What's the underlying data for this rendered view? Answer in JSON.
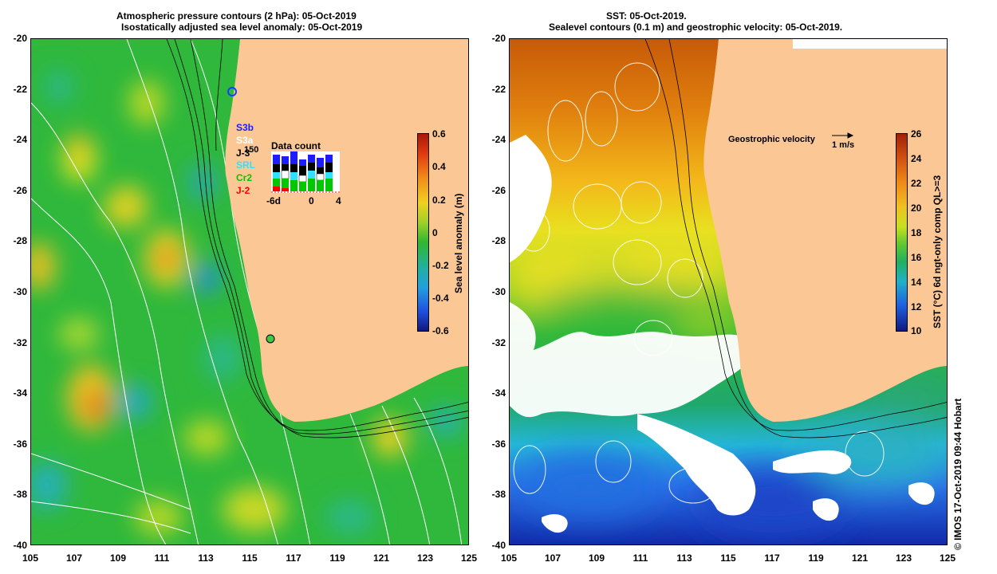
{
  "left_panel": {
    "title_line1": "Atmospheric pressure contours (2 hPa): 05-Oct-2019",
    "title_line2": "Isostatically adjusted sea level anomaly: 05-Oct-2019",
    "satellites": [
      {
        "label": "S3b",
        "color": "#1c1cff"
      },
      {
        "label": "S3a",
        "color": "#ffffff"
      },
      {
        "label": "J-3",
        "color": "#000000"
      },
      {
        "label": "SRL",
        "color": "#30e0ff"
      },
      {
        "label": "Cr2",
        "color": "#00c800"
      },
      {
        "label": "J-2",
        "color": "#ff0000"
      }
    ],
    "data_count": {
      "title": "Data count",
      "max_label": "150",
      "axis_labels": [
        "-6d",
        "0",
        "4"
      ]
    },
    "colorbar": {
      "label": "Sea level anomaly (m)",
      "ticks": [
        "0.6",
        "0.4",
        "0.2",
        "0",
        "-0.2",
        "-0.4",
        "-0.6"
      ]
    }
  },
  "right_panel": {
    "title_line1": "SST: 05-Oct-2019.",
    "title_line2": "Sealevel contours (0.1 m) and geostrophic velocity: 05-Oct-2019.",
    "velocity_legend": {
      "label": "Geostrophic velocity",
      "scale": "1 m/s"
    },
    "colorbar": {
      "label": "SST (°C) 6d ngt-only comp QL>=3",
      "ticks": [
        "26",
        "24",
        "22",
        "20",
        "18",
        "16",
        "14",
        "12",
        "10"
      ]
    }
  },
  "axes": {
    "y_ticks": [
      "-20",
      "-22",
      "-24",
      "-26",
      "-28",
      "-30",
      "-32",
      "-34",
      "-36",
      "-38",
      "-40"
    ],
    "x_ticks": [
      "105",
      "107",
      "109",
      "111",
      "113",
      "115",
      "117",
      "119",
      "121",
      "123",
      "125"
    ]
  },
  "credit": "© IMOS 17-Oct-2019 09:44 Hobart",
  "colors": {
    "land": "#fbc794",
    "sla_green": "#2fb83c",
    "sst_orange": "#e07e10",
    "sst_blue": "#1a44d0"
  }
}
